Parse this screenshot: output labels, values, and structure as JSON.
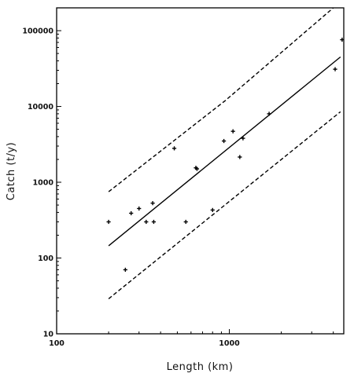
{
  "chart_data": {
    "type": "scatter",
    "xlabel": "Length  (km)",
    "ylabel": "Catch  (t/y)",
    "xscale": "log",
    "yscale": "log",
    "xlim": [
      100,
      4600
    ],
    "ylim": [
      10,
      200000
    ],
    "x_ticks": [
      "100",
      "1000"
    ],
    "x_tick_values": [
      100,
      1000
    ],
    "y_ticks": [
      "10",
      "100",
      "1000",
      "10000",
      "100000"
    ],
    "y_tick_values": [
      10,
      100,
      1000,
      10000,
      100000
    ],
    "grid": false,
    "points": [
      {
        "x": 200,
        "y": 300
      },
      {
        "x": 250,
        "y": 70
      },
      {
        "x": 270,
        "y": 390
      },
      {
        "x": 300,
        "y": 450
      },
      {
        "x": 330,
        "y": 300
      },
      {
        "x": 360,
        "y": 530
      },
      {
        "x": 365,
        "y": 300
      },
      {
        "x": 480,
        "y": 2800
      },
      {
        "x": 560,
        "y": 300
      },
      {
        "x": 640,
        "y": 1550
      },
      {
        "x": 650,
        "y": 1500
      },
      {
        "x": 800,
        "y": 430
      },
      {
        "x": 930,
        "y": 3500
      },
      {
        "x": 1050,
        "y": 4700
      },
      {
        "x": 1150,
        "y": 2150
      },
      {
        "x": 1200,
        "y": 3800
      },
      {
        "x": 1700,
        "y": 8000
      },
      {
        "x": 4100,
        "y": 31000
      },
      {
        "x": 4500,
        "y": 76000
      }
    ],
    "lines": [
      {
        "style": "solid",
        "x": [
          200,
          4400
        ],
        "y": [
          145,
          45000
        ]
      },
      {
        "style": "dashed",
        "x": [
          200,
          950,
          4000
        ],
        "y": [
          750,
          12000,
          200000
        ]
      },
      {
        "style": "dashed",
        "x": [
          200,
          4400
        ],
        "y": [
          29,
          8500
        ]
      }
    ]
  }
}
